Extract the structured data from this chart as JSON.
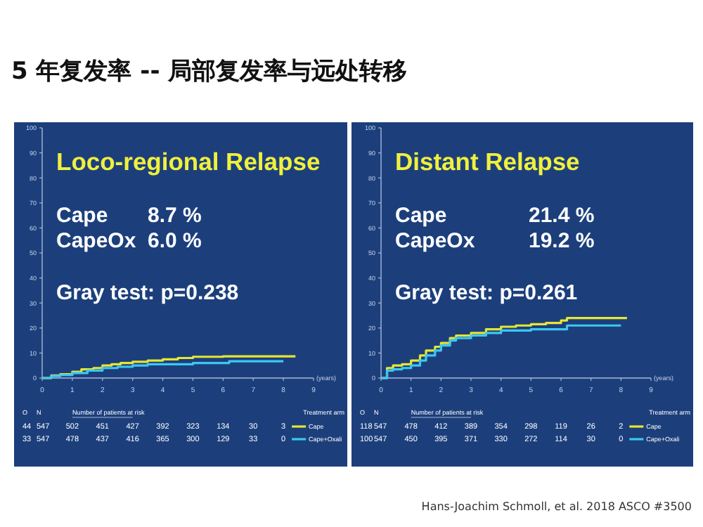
{
  "chart_data": [
    {
      "type": "step",
      "title": "Loco-regional Relapse",
      "xlabel": "(years)",
      "xlim": [
        0,
        9
      ],
      "xticks": [
        0,
        1,
        2,
        3,
        4,
        5,
        6,
        7,
        8,
        9
      ],
      "ylim": [
        0,
        100
      ],
      "yticks": [
        0,
        10,
        20,
        30,
        40,
        50,
        60,
        70,
        80,
        90,
        100
      ],
      "legend": "bottom right",
      "series": [
        {
          "name": "Cape",
          "color": "#e6e632",
          "x": [
            0,
            0.3,
            0.6,
            1,
            1.3,
            1.7,
            2,
            2.3,
            2.6,
            3,
            3.5,
            4,
            4.5,
            5,
            6,
            7,
            8,
            8.4
          ],
          "values": [
            0,
            1,
            1.5,
            2.5,
            3.5,
            4,
            5,
            5.5,
            6,
            6.5,
            7,
            7.5,
            8,
            8.5,
            8.7,
            8.7,
            8.7,
            8.7
          ]
        },
        {
          "name": "Cape+Oxali",
          "color": "#3cc8f0",
          "x": [
            0,
            0.3,
            0.6,
            1,
            1.5,
            2,
            2.5,
            3,
            3.5,
            4,
            5,
            6,
            6.2,
            7,
            8
          ],
          "values": [
            0,
            0.8,
            1.2,
            2,
            3,
            4,
            4.5,
            5,
            5.5,
            5.5,
            6,
            6,
            6.7,
            6.7,
            6.7
          ]
        }
      ],
      "annotations": [
        "5 年复发率 -- 局部复发率与远处转移",
        "Cape",
        "8.7 %",
        "CapeOx",
        "6.0 %",
        "Gray test: p=0.238",
        "O",
        "N",
        "Number of patients at risk",
        "Treatment arm",
        "44",
        "547",
        "502",
        "451",
        "427",
        "392",
        "323",
        "134",
        "30",
        "3",
        "33",
        "547",
        "478",
        "437",
        "416",
        "365",
        "300",
        "129",
        "33",
        "0"
      ]
    },
    {
      "type": "step",
      "title": "Distant Relapse",
      "xlabel": "(years)",
      "xlim": [
        0,
        9
      ],
      "xticks": [
        0,
        1,
        2,
        3,
        4,
        5,
        6,
        7,
        8,
        9
      ],
      "ylim": [
        0,
        100
      ],
      "yticks": [
        0,
        10,
        20,
        30,
        40,
        50,
        60,
        70,
        80,
        90,
        100
      ],
      "legend": "bottom right",
      "series": [
        {
          "name": "Cape",
          "color": "#e6e632",
          "x": [
            0,
            0.2,
            0.4,
            0.7,
            1,
            1.3,
            1.5,
            1.8,
            2,
            2.3,
            2.5,
            3,
            3.5,
            4,
            4.5,
            5,
            5.5,
            6,
            6.2,
            7,
            8.2
          ],
          "values": [
            0,
            4,
            5,
            5.5,
            7,
            9,
            11,
            12.5,
            14,
            16,
            17,
            18,
            19.5,
            20.5,
            21,
            21.5,
            22,
            23,
            24,
            24,
            24
          ]
        },
        {
          "name": "Cape+Oxali",
          "color": "#3cc8f0",
          "x": [
            0,
            0.2,
            0.4,
            0.7,
            1,
            1.3,
            1.5,
            1.8,
            2,
            2.3,
            2.5,
            3,
            3.5,
            4,
            5,
            6,
            6.2,
            7,
            8
          ],
          "values": [
            0,
            3,
            3.5,
            4,
            5,
            7,
            9,
            11,
            13,
            15,
            16,
            17,
            18,
            19,
            19.5,
            19.5,
            21,
            21,
            21
          ]
        }
      ],
      "annotations": [
        "Cape",
        "21.4 %",
        "CapeOx",
        "19.2 %",
        "Gray test: p=0.261",
        "O",
        "N",
        "Number of patients at risk",
        "Treatment arm",
        "118",
        "547",
        "478",
        "412",
        "389",
        "354",
        "298",
        "119",
        "26",
        "2",
        "100",
        "547",
        "450",
        "395",
        "371",
        "330",
        "272",
        "114",
        "30",
        "0",
        "Hans-Joachim Schmoll, et al. 2018 ASCO #3500"
      ]
    }
  ]
}
